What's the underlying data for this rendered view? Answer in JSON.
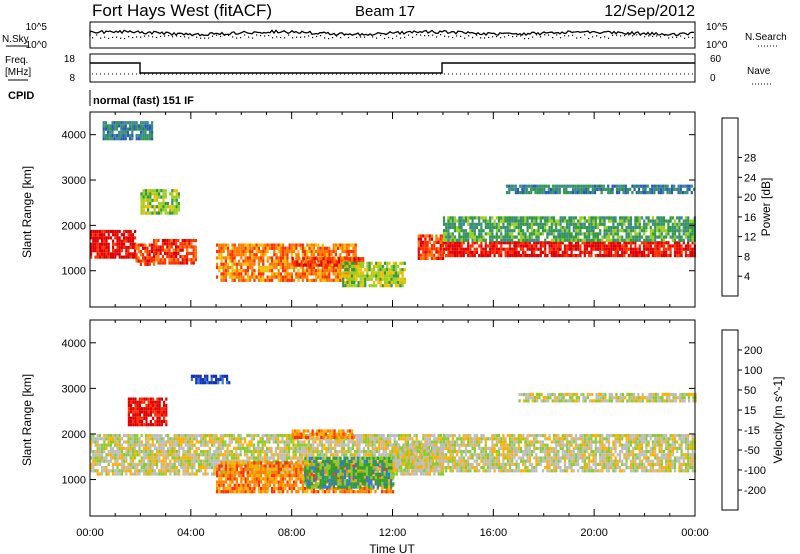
{
  "header": {
    "station": "Fort Hays West (fitACF)",
    "beam": "Beam 17",
    "date": "12/Sep/2012"
  },
  "noise_panel": {
    "left_label": "N.Sky",
    "right_label": "N.Search",
    "tick_top": "10^5",
    "tick_bottom": "10^0"
  },
  "freq_panel": {
    "left_label_line1": "Freq.",
    "left_label_line2": "[MHz]",
    "left_ticks": [
      "18",
      "8"
    ],
    "right_label": "Nave",
    "right_ticks": [
      "60",
      "0"
    ]
  },
  "cpid": {
    "label": "CPID",
    "mode": "normal (fast) 151 IF"
  },
  "colors": {
    "power_scale": [
      "#0022ee",
      "#2a58c0",
      "#3a8a8a",
      "#2f9a40",
      "#9ad020",
      "#f0c000",
      "#ff7a00",
      "#ff3000",
      "#e00000"
    ],
    "velocity_scale": [
      "#1530b0",
      "#2a7ae0",
      "#2fa02f",
      "#88cc30",
      "#bdbdbd",
      "#ffb000",
      "#ff8000",
      "#ff3000",
      "#e00000"
    ]
  },
  "chart_data": [
    {
      "type": "heatmap",
      "parameter": "Power",
      "ylabel": "Slant Range [km]",
      "yticks": [
        "1000",
        "2000",
        "3000",
        "4000"
      ],
      "ylim": [
        200,
        4500
      ],
      "colorbar_label": "Power [dB]",
      "colorbar_ticks": [
        "4",
        "8",
        "12",
        "16",
        "20",
        "24",
        "28"
      ],
      "features": [
        {
          "hours": [
            0.0,
            1.8
          ],
          "range_km": [
            1300,
            1900
          ],
          "level_db": 26
        },
        {
          "hours": [
            1.8,
            2.5
          ],
          "range_km": [
            1150,
            1600
          ],
          "level_db": 24
        },
        {
          "hours": [
            2.5,
            4.2
          ],
          "range_km": [
            1200,
            1700
          ],
          "level_db": 24
        },
        {
          "hours": [
            5.0,
            10.5
          ],
          "range_km": [
            800,
            1600
          ],
          "level_db": 20
        },
        {
          "hours": [
            8.0,
            10.8
          ],
          "range_km": [
            1150,
            1300
          ],
          "level_db": 24
        },
        {
          "hours": [
            10.0,
            12.5
          ],
          "range_km": [
            700,
            1200
          ],
          "level_db": 16
        },
        {
          "hours": [
            13.0,
            14.0
          ],
          "range_km": [
            1300,
            1800
          ],
          "level_db": 24
        },
        {
          "hours": [
            14.0,
            24.0
          ],
          "range_km": [
            1350,
            1650
          ],
          "level_db": 28
        },
        {
          "hours": [
            14.0,
            24.0
          ],
          "range_km": [
            1650,
            2200
          ],
          "level_db": 10
        },
        {
          "hours": [
            16.5,
            24.0
          ],
          "range_km": [
            2700,
            2900
          ],
          "level_db": 8
        },
        {
          "hours": [
            0.5,
            2.5
          ],
          "range_km": [
            3900,
            4300
          ],
          "level_db": 8
        },
        {
          "hours": [
            2.0,
            3.5
          ],
          "range_km": [
            2300,
            2800
          ],
          "level_db": 14
        }
      ]
    },
    {
      "type": "heatmap",
      "parameter": "Velocity",
      "ylabel": "Slant Range [km]",
      "yticks": [
        "1000",
        "2000",
        "3000",
        "4000"
      ],
      "ylim": [
        200,
        4500
      ],
      "xlabel": "Time UT",
      "xticks": [
        "00:00",
        "04:00",
        "08:00",
        "12:00",
        "16:00",
        "20:00",
        "00:00"
      ],
      "xlim_hours": [
        0,
        24
      ],
      "colorbar_label": "Velocity [m s^-1]",
      "colorbar_ticks": [
        "200",
        "100",
        "50",
        "15",
        "-15",
        "-50",
        "-100",
        "-200"
      ],
      "features": [
        {
          "hours": [
            0.0,
            14.0
          ],
          "range_km": [
            1100,
            2000
          ],
          "velocity_ms": 0
        },
        {
          "hours": [
            1.5,
            3.0
          ],
          "range_km": [
            2200,
            2800
          ],
          "velocity_ms": -220
        },
        {
          "hours": [
            5.0,
            12.0
          ],
          "range_km": [
            700,
            1400
          ],
          "velocity_ms": -70
        },
        {
          "hours": [
            8.5,
            12.0
          ],
          "range_km": [
            800,
            1500
          ],
          "velocity_ms": 40
        },
        {
          "hours": [
            12.0,
            14.0
          ],
          "range_km": [
            1200,
            1800
          ],
          "velocity_ms": 0
        },
        {
          "hours": [
            14.0,
            24.0
          ],
          "range_km": [
            1200,
            2000
          ],
          "velocity_ms": 0
        },
        {
          "hours": [
            17.0,
            24.0
          ],
          "range_km": [
            2700,
            2900
          ],
          "velocity_ms": 0
        },
        {
          "hours": [
            4.0,
            5.5
          ],
          "range_km": [
            3100,
            3300
          ],
          "velocity_ms": 180
        },
        {
          "hours": [
            8.0,
            10.5
          ],
          "range_km": [
            1900,
            2100
          ],
          "velocity_ms": -90
        }
      ]
    }
  ]
}
